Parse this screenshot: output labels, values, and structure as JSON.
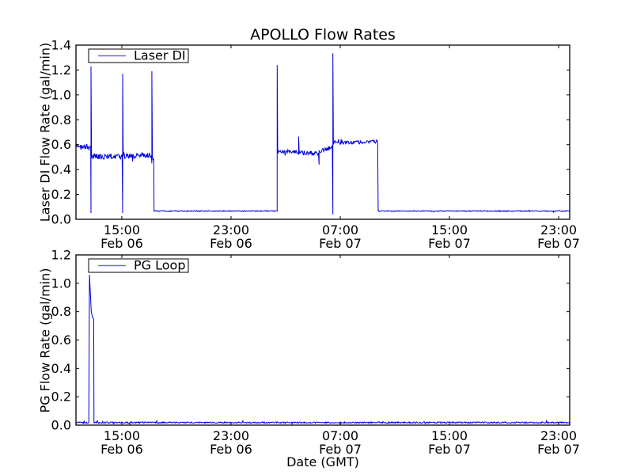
{
  "figure": {
    "title": "APOLLO Flow Rates",
    "xlabel": "Date (GMT)",
    "colors": {
      "line": "#0000dd",
      "legend_line": "#6b6bee",
      "frame": "#000000",
      "background": "#ffffff"
    }
  },
  "chart_data": [
    {
      "type": "line",
      "title": "APOLLO Flow Rates",
      "ylabel": "Laser DI Flow Rate (gal/min)",
      "xlabel": "",
      "legend": {
        "label": "Laser DI",
        "position": "upper left"
      },
      "ylim": [
        0.0,
        1.4
      ],
      "yticks": [
        0.0,
        0.2,
        0.4,
        0.6,
        0.8,
        1.0,
        1.2,
        1.4
      ],
      "grid": false,
      "x_domain_hours_from_feb06_0000": [
        11.64,
        47.81
      ],
      "xticks": [
        {
          "hour": 15,
          "time": "15:00",
          "date": "Feb 06"
        },
        {
          "hour": 23,
          "time": "23:00",
          "date": "Feb 06"
        },
        {
          "hour": 31,
          "time": "07:00",
          "date": "Feb 07"
        },
        {
          "hour": 39,
          "time": "15:00",
          "date": "Feb 07"
        },
        {
          "hour": 47,
          "time": "23:00",
          "date": "Feb 07"
        }
      ],
      "series": [
        {
          "name": "Laser DI",
          "units": "gal/min",
          "segments": [
            {
              "type": "level",
              "t0": 11.64,
              "t1": 12.72,
              "v0": 0.6,
              "v1": 0.575,
              "noise": 0.02
            },
            {
              "type": "spike",
              "t": 12.74,
              "top": 1.23,
              "bottom": 0.05
            },
            {
              "type": "level",
              "t0": 12.78,
              "t1": 15.02,
              "v0": 0.505,
              "v1": 0.505,
              "noise": 0.022
            },
            {
              "type": "spike",
              "t": 15.06,
              "top": 1.17,
              "bottom": 0.05
            },
            {
              "type": "level",
              "t0": 15.1,
              "t1": 17.16,
              "v0": 0.51,
              "v1": 0.515,
              "noise": 0.022
            },
            {
              "type": "spike",
              "t": 17.2,
              "top": 1.19,
              "bottom": 0.45
            },
            {
              "type": "level",
              "t0": 17.24,
              "t1": 17.34,
              "v0": 0.5,
              "v1": 0.49,
              "noise": 0.02
            },
            {
              "type": "level",
              "t0": 17.36,
              "t1": 26.34,
              "v0": 0.066,
              "v1": 0.066,
              "noise": 0.004
            },
            {
              "type": "spike",
              "t": 26.38,
              "top": 1.24,
              "bottom": 0.066
            },
            {
              "type": "level",
              "t0": 26.42,
              "t1": 27.9,
              "v0": 0.55,
              "v1": 0.54,
              "noise": 0.018
            },
            {
              "type": "spike",
              "t": 27.95,
              "top": 0.665,
              "bottom": 0.52
            },
            {
              "type": "level",
              "t0": 28.0,
              "t1": 29.4,
              "v0": 0.54,
              "v1": 0.525,
              "noise": 0.018
            },
            {
              "type": "spike",
              "t": 29.45,
              "top": 0.55,
              "bottom": 0.44
            },
            {
              "type": "level",
              "t0": 29.5,
              "t1": 30.42,
              "v0": 0.55,
              "v1": 0.58,
              "noise": 0.018
            },
            {
              "type": "spike",
              "t": 30.46,
              "top": 1.335,
              "bottom": 0.04
            },
            {
              "type": "level",
              "t0": 30.5,
              "t1": 33.74,
              "v0": 0.615,
              "v1": 0.625,
              "noise": 0.016
            },
            {
              "type": "level",
              "t0": 33.78,
              "t1": 47.81,
              "v0": 0.066,
              "v1": 0.066,
              "noise": 0.004
            }
          ]
        }
      ]
    },
    {
      "type": "line",
      "title": "",
      "ylabel": "PG Flow Rate (gal/min)",
      "xlabel": "Date (GMT)",
      "legend": {
        "label": "PG Loop",
        "position": "upper left"
      },
      "ylim": [
        0.0,
        1.2
      ],
      "yticks": [
        0.0,
        0.2,
        0.4,
        0.6,
        0.8,
        1.0,
        1.2
      ],
      "grid": false,
      "x_domain_hours_from_feb06_0000": [
        11.64,
        47.81
      ],
      "xticks": [
        {
          "hour": 15,
          "time": "15:00",
          "date": "Feb 06"
        },
        {
          "hour": 23,
          "time": "23:00",
          "date": "Feb 06"
        },
        {
          "hour": 31,
          "time": "07:00",
          "date": "Feb 07"
        },
        {
          "hour": 39,
          "time": "15:00",
          "date": "Feb 07"
        },
        {
          "hour": 47,
          "time": "23:00",
          "date": "Feb 07"
        }
      ],
      "series": [
        {
          "name": "PG Loop",
          "units": "gal/min",
          "segments": [
            {
              "type": "level",
              "t0": 11.64,
              "t1": 12.56,
              "v0": 0.018,
              "v1": 0.018,
              "noise": 0.005
            },
            {
              "type": "points",
              "pts": [
                [
                  12.58,
                  0.02
                ],
                [
                  12.63,
                  1.06
                ],
                [
                  12.68,
                  0.96
                ],
                [
                  12.76,
                  0.8
                ],
                [
                  12.8,
                  0.785
                ],
                [
                  12.84,
                  0.76
                ],
                [
                  12.94,
                  0.75
                ],
                [
                  12.96,
                  0.02
                ]
              ]
            },
            {
              "type": "level",
              "t0": 12.98,
              "t1": 47.81,
              "v0": 0.018,
              "v1": 0.018,
              "noise": 0.005
            }
          ]
        }
      ]
    }
  ]
}
